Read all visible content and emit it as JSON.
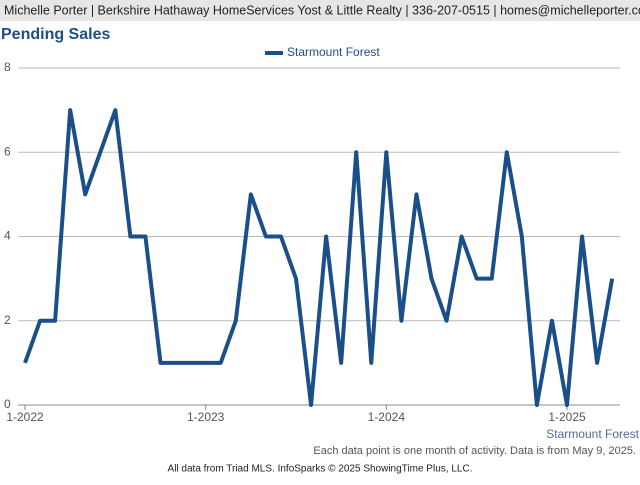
{
  "header": "Michelle Porter | Berkshire Hathaway HomeServices Yost & Little Realty | 336-207-0515 | homes@michelleporter.com",
  "chart_data": {
    "type": "line",
    "title": "Pending Sales",
    "categories": [
      "1-2022",
      null,
      null,
      null,
      null,
      null,
      null,
      null,
      null,
      null,
      null,
      null,
      "1-2023",
      null,
      null,
      null,
      null,
      null,
      null,
      null,
      null,
      null,
      null,
      null,
      "1-2024",
      null,
      null,
      null,
      null,
      null,
      null,
      null,
      null,
      null,
      null,
      null,
      "1-2025",
      null,
      null,
      null
    ],
    "series": [
      {
        "name": "Starmount Forest",
        "color": "#1b4f8a",
        "values": [
          1,
          2,
          2,
          7,
          5,
          6,
          7,
          4,
          4,
          1,
          1,
          1,
          1,
          1,
          2,
          5,
          4,
          4,
          3,
          0,
          4,
          1,
          6,
          1,
          6,
          2,
          5,
          3,
          2,
          4,
          3,
          3,
          6,
          4,
          0,
          2,
          0,
          4,
          1,
          3
        ]
      }
    ],
    "ylim": [
      0,
      8
    ],
    "yticks": [
      0,
      2,
      4,
      6,
      8
    ],
    "grid": true,
    "xlabel": "Starmount Forest",
    "note": "Each data point is one month of activity. Data is from May 9, 2025."
  },
  "footer": "All data from Triad MLS. InfoSparks © 2025 ShowingTime Plus, LLC."
}
